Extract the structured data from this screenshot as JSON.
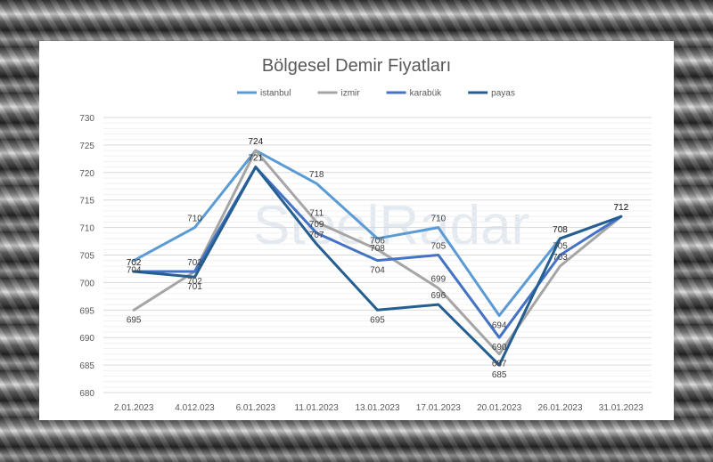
{
  "watermark": "SteelRadar",
  "chart_data": {
    "type": "line",
    "title": "Bölgesel Demir Fiyatları",
    "xlabel": "",
    "ylabel": "",
    "categories": [
      "2.01.2023",
      "4.012.023",
      "6.01.2023",
      "11.01.2023",
      "13.01.2023",
      "17.01.2023",
      "20.01.2023",
      "26.01.2023",
      "31.01.2023"
    ],
    "ylim": [
      680,
      730
    ],
    "yticks": [
      680,
      685,
      690,
      695,
      700,
      705,
      710,
      715,
      720,
      725,
      730
    ],
    "grid": true,
    "legend": "top",
    "series": [
      {
        "name": "istanbul",
        "color": "#5b9bd5",
        "values": [
          704,
          710,
          724,
          718,
          708,
          710,
          694,
          708,
          712
        ]
      },
      {
        "name": "izmir",
        "color": "#a5a5a5",
        "values": [
          695,
          702,
          724,
          711,
          706,
          699,
          687,
          703,
          712
        ]
      },
      {
        "name": "karabük",
        "color": "#4472c4",
        "values": [
          702,
          702,
          721,
          709,
          704,
          705,
          690,
          705,
          712
        ]
      },
      {
        "name": "payas",
        "color": "#255e91",
        "values": [
          702,
          701,
          721,
          707,
          695,
          696,
          685,
          708,
          712
        ]
      }
    ]
  }
}
